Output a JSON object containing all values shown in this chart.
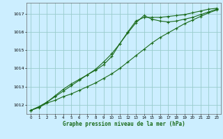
{
  "xlabel": "Graphe pression niveau de la mer (hPa)",
  "bg_color": "#cceeff",
  "grid_color": "#99cccc",
  "line_color": "#1a6b1a",
  "marker": "+",
  "xlim": [
    -0.5,
    23.5
  ],
  "ylim": [
    1011.5,
    1017.6
  ],
  "yticks": [
    1012,
    1013,
    1014,
    1015,
    1016,
    1017
  ],
  "xticks": [
    0,
    1,
    2,
    3,
    4,
    5,
    6,
    7,
    8,
    9,
    10,
    11,
    12,
    13,
    14,
    15,
    16,
    17,
    18,
    19,
    20,
    21,
    22,
    23
  ],
  "line1": {
    "x": [
      0,
      1,
      2,
      3,
      4,
      5,
      6,
      7,
      8,
      9,
      10,
      11,
      12,
      13,
      14,
      15,
      16,
      17,
      18,
      19,
      20,
      21,
      22,
      23
    ],
    "y": [
      1011.7,
      1011.85,
      1012.1,
      1012.25,
      1012.45,
      1012.6,
      1012.8,
      1013.0,
      1013.2,
      1013.45,
      1013.7,
      1014.0,
      1014.35,
      1014.7,
      1015.05,
      1015.4,
      1015.7,
      1015.95,
      1016.2,
      1016.45,
      1016.65,
      1016.85,
      1017.05,
      1017.2
    ]
  },
  "line2": {
    "x": [
      0,
      1,
      2,
      3,
      4,
      5,
      6,
      7,
      8,
      9,
      10,
      11,
      12,
      13,
      14,
      15,
      16,
      17,
      18,
      19,
      20,
      21,
      22,
      23
    ],
    "y": [
      1011.7,
      1011.9,
      1012.15,
      1012.45,
      1012.75,
      1013.05,
      1013.35,
      1013.65,
      1013.95,
      1014.35,
      1014.8,
      1015.35,
      1015.95,
      1016.5,
      1016.9,
      1016.7,
      1016.6,
      1016.55,
      1016.6,
      1016.7,
      1016.8,
      1016.95,
      1017.1,
      1017.25
    ]
  },
  "line3": {
    "x": [
      0,
      1,
      2,
      3,
      4,
      5,
      6,
      7,
      8,
      9,
      10,
      11,
      12,
      13,
      14,
      15,
      16,
      17,
      18,
      19,
      20,
      21,
      22,
      23
    ],
    "y": [
      1011.7,
      1011.9,
      1012.15,
      1012.5,
      1012.85,
      1013.15,
      1013.4,
      1013.65,
      1013.9,
      1014.2,
      1014.65,
      1015.35,
      1016.0,
      1016.6,
      1016.8,
      1016.8,
      1016.8,
      1016.85,
      1016.9,
      1016.95,
      1017.05,
      1017.15,
      1017.25,
      1017.3
    ]
  }
}
